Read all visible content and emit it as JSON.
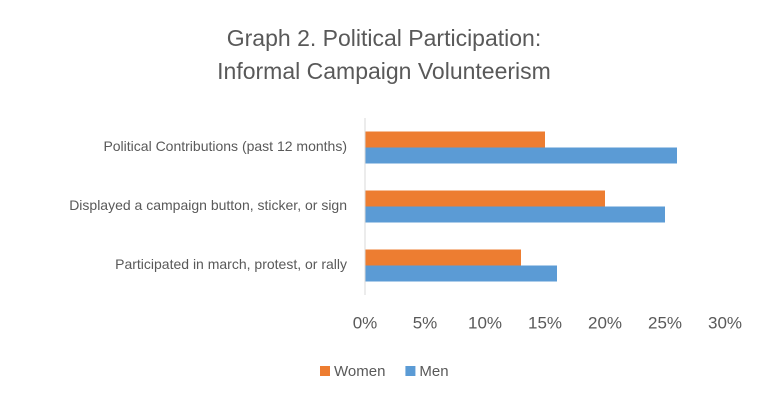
{
  "chart_data": {
    "type": "hbar",
    "title": [
      "Graph 2. Political Participation:",
      "Informal Campaign Volunteerism"
    ],
    "categories": [
      "Political Contributions (past 12 months)",
      "Displayed a campaign button, sticker, or sign",
      "Participated in march, protest, or rally"
    ],
    "series": [
      {
        "name": "Women",
        "color": "#ED7D31",
        "values": [
          15,
          20,
          13
        ]
      },
      {
        "name": "Men",
        "color": "#5B9BD5",
        "values": [
          26,
          25,
          16
        ]
      }
    ],
    "xlim": [
      0,
      30
    ],
    "xticks": [
      {
        "value": 0,
        "label": "0%"
      },
      {
        "value": 5,
        "label": "5%"
      },
      {
        "value": 10,
        "label": "10%"
      },
      {
        "value": 15,
        "label": "15%"
      },
      {
        "value": 20,
        "label": "20%"
      },
      {
        "value": 25,
        "label": "25%"
      },
      {
        "value": 30,
        "label": "30%"
      }
    ],
    "grid": false,
    "legend": "bottom"
  }
}
